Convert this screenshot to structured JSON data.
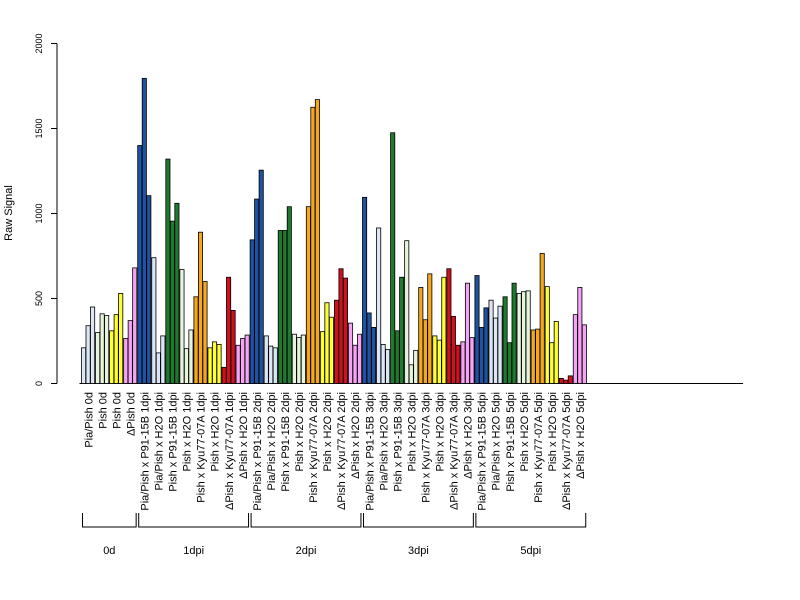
{
  "chart_data": {
    "type": "bar",
    "ylabel": "Raw Signal",
    "ylim": [
      0,
      2000
    ],
    "yticks": [
      0,
      500,
      1000,
      1500,
      2000
    ],
    "grid": false,
    "categories": [
      {
        "label": "Pia/Pish 0d",
        "color": "#DCE6F5",
        "values": [
          210,
          340,
          450
        ]
      },
      {
        "label": "Pish 0d",
        "color": "#E6F5DC",
        "values": [
          300,
          410,
          400
        ]
      },
      {
        "label": "Pish 0d",
        "color": "#FFFF33",
        "values": [
          310,
          405,
          530
        ]
      },
      {
        "label": "ΔPish 0d",
        "color": "#F5A3F5",
        "values": [
          265,
          370,
          680
        ]
      },
      {
        "label": "Pia/Pish x P91-15B 1dpi",
        "color": "#1F52A0",
        "values": [
          1400,
          1795,
          1105
        ]
      },
      {
        "label": "Pia/Pish x H2O 1dpi",
        "color": "#DCE6F5",
        "values": [
          740,
          180,
          280
        ]
      },
      {
        "label": "Pish x P91-15B 1dpi",
        "color": "#1F7A2E",
        "values": [
          1320,
          955,
          1060
        ]
      },
      {
        "label": "Pish x H2O 1dpi",
        "color": "#E6F5DC",
        "values": [
          670,
          205,
          315
        ]
      },
      {
        "label": "Pish x Kyu77-07A 1dpi",
        "color": "#F5A81F",
        "values": [
          510,
          890,
          600
        ]
      },
      {
        "label": "Pish x H2O 1dpi",
        "color": "#FFFF33",
        "values": [
          210,
          245,
          230
        ]
      },
      {
        "label": "ΔPish x Kyu77-07A 1dpi",
        "color": "#D0101E",
        "values": [
          95,
          625,
          430
        ]
      },
      {
        "label": "ΔPish x H2O 1dpi",
        "color": "#F5A3F5",
        "values": [
          225,
          265,
          285
        ]
      },
      {
        "label": "Pia/Pish x P91-15B 2dpi",
        "color": "#1F52A0",
        "values": [
          845,
          1085,
          1255
        ]
      },
      {
        "label": "Pia/Pish x H2O 2dpi",
        "color": "#DCE6F5",
        "values": [
          280,
          220,
          210
        ]
      },
      {
        "label": "Pish x P91-15B 2dpi",
        "color": "#1F7A2E",
        "values": [
          900,
          900,
          1040
        ]
      },
      {
        "label": "Pish x H2O 2dpi",
        "color": "#E6F5DC",
        "values": [
          290,
          270,
          285
        ]
      },
      {
        "label": "Pish x Kyu77-07A 2dpi",
        "color": "#F5A81F",
        "values": [
          1040,
          1625,
          1670
        ]
      },
      {
        "label": "Pish x H2O 2dpi",
        "color": "#FFFF33",
        "values": [
          305,
          475,
          390
        ]
      },
      {
        "label": "ΔPish x Kyu77-07A 2dpi",
        "color": "#D0101E",
        "values": [
          490,
          675,
          620
        ]
      },
      {
        "label": "ΔPish x H2O 2dpi",
        "color": "#F5A3F5",
        "values": [
          355,
          225,
          290
        ]
      },
      {
        "label": "Pia/Pish x P91-15B 3dpi",
        "color": "#1F52A0",
        "values": [
          1095,
          415,
          330
        ]
      },
      {
        "label": "Pia/Pish x H2O 3dpi",
        "color": "#DCE6F5",
        "values": [
          915,
          230,
          200
        ]
      },
      {
        "label": "Pish x P91-15B 3dpi",
        "color": "#1F7A2E",
        "values": [
          1475,
          310,
          625
        ]
      },
      {
        "label": "Pish x H2O 3dpi",
        "color": "#E6F5DC",
        "values": [
          840,
          110,
          195
        ]
      },
      {
        "label": "Pish x Kyu77-07A 3dpi",
        "color": "#F5A81F",
        "values": [
          565,
          375,
          645
        ]
      },
      {
        "label": "Pish x H2O 3dpi",
        "color": "#FFFF33",
        "values": [
          280,
          255,
          625
        ]
      },
      {
        "label": "ΔPish x Kyu77-07A 3dpi",
        "color": "#D0101E",
        "values": [
          675,
          395,
          225
        ]
      },
      {
        "label": "ΔPish x H2O 3dpi",
        "color": "#F5A3F5",
        "values": [
          245,
          590,
          270
        ]
      },
      {
        "label": "Pia/Pish x P91-15B 5dpi",
        "color": "#1F52A0",
        "values": [
          635,
          330,
          445
        ]
      },
      {
        "label": "Pia/Pish x H2O 5dpi",
        "color": "#DCE6F5",
        "values": [
          490,
          385,
          455
        ]
      },
      {
        "label": "Pish x P91-15B 5dpi",
        "color": "#1F7A2E",
        "values": [
          510,
          240,
          590
        ]
      },
      {
        "label": "Pish x H2O 5dpi",
        "color": "#E6F5DC",
        "values": [
          530,
          540,
          545
        ]
      },
      {
        "label": "Pish x Kyu77-07A 5dpi",
        "color": "#F5A81F",
        "values": [
          315,
          320,
          765
        ]
      },
      {
        "label": "Pish x H2O 5dpi",
        "color": "#FFFF33",
        "values": [
          570,
          240,
          365
        ]
      },
      {
        "label": "ΔPish x Kyu77-07A 5dpi",
        "color": "#D0101E",
        "values": [
          30,
          20,
          45
        ]
      },
      {
        "label": "ΔPish x H2O 5dpi",
        "color": "#F5A3F5",
        "values": [
          405,
          565,
          345
        ]
      }
    ],
    "groups": [
      {
        "label": "0d",
        "start": 0,
        "end": 3
      },
      {
        "label": "1dpi",
        "start": 4,
        "end": 11
      },
      {
        "label": "2dpi",
        "start": 12,
        "end": 19
      },
      {
        "label": "3dpi",
        "start": 20,
        "end": 27
      },
      {
        "label": "5dpi",
        "start": 28,
        "end": 35
      }
    ]
  }
}
